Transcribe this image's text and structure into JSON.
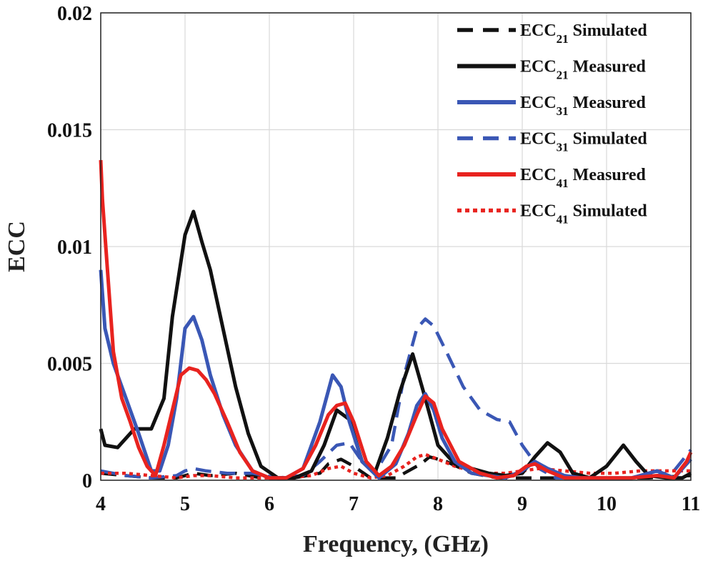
{
  "chart_data": {
    "type": "line",
    "title": "",
    "xlabel": "Frequency, (GHz)",
    "ylabel": "ECC",
    "xlim": [
      4,
      11
    ],
    "ylim": [
      0,
      0.02
    ],
    "xticks": [
      "4",
      "5",
      "6",
      "7",
      "8",
      "9",
      "10",
      "11"
    ],
    "yticks": [
      "0",
      "0.005",
      "0.01",
      "0.015",
      "0.02"
    ],
    "grid": true,
    "legend_position": "top-right",
    "series": [
      {
        "name": "ECC21 Simulated",
        "base": "ECC",
        "sub": "21",
        "suffix": "Simulated",
        "color": "#111111",
        "style": "dashed",
        "x": [
          4,
          4.3,
          4.6,
          4.9,
          5.0,
          5.1,
          5.3,
          5.6,
          5.9,
          6.1,
          6.3,
          6.6,
          6.7,
          6.85,
          7.0,
          7.2,
          7.5,
          7.8,
          7.9,
          8.1,
          8.4,
          8.7,
          9.0,
          9.3,
          9.6,
          10,
          10.5,
          11
        ],
        "y": [
          0.0003,
          0.0002,
          0.0001,
          0.0001,
          0.0002,
          0.0003,
          0.0002,
          0.0003,
          0.0001,
          0.0001,
          0.0001,
          0.0003,
          0.0007,
          0.0009,
          0.0006,
          0.0001,
          0.0001,
          0.0007,
          0.001,
          0.0008,
          0.0003,
          0.0001,
          0.0001,
          0.0001,
          0.0001,
          0.0001,
          0.0001,
          0.0002
        ]
      },
      {
        "name": "ECC21 Measured",
        "base": "ECC",
        "sub": "21",
        "suffix": "Measured",
        "color": "#111111",
        "style": "solid",
        "x": [
          4,
          4.05,
          4.2,
          4.4,
          4.6,
          4.75,
          4.85,
          5.0,
          5.1,
          5.2,
          5.3,
          5.45,
          5.6,
          5.75,
          5.9,
          6.1,
          6.3,
          6.5,
          6.65,
          6.8,
          6.95,
          7.1,
          7.25,
          7.4,
          7.55,
          7.7,
          7.85,
          8.0,
          8.2,
          8.4,
          8.6,
          8.8,
          9.0,
          9.15,
          9.3,
          9.45,
          9.6,
          9.8,
          10.0,
          10.2,
          10.35,
          10.5,
          10.7,
          10.9,
          11
        ],
        "y": [
          0.0022,
          0.0015,
          0.0014,
          0.0022,
          0.0022,
          0.0035,
          0.007,
          0.0105,
          0.0115,
          0.0102,
          0.009,
          0.0065,
          0.004,
          0.002,
          0.0006,
          0.0001,
          0.0001,
          0.0004,
          0.0015,
          0.003,
          0.0026,
          0.0008,
          0.0003,
          0.0018,
          0.0038,
          0.0054,
          0.0035,
          0.0015,
          0.0007,
          0.0005,
          0.0003,
          0.0002,
          0.0003,
          0.001,
          0.0016,
          0.0012,
          0.0003,
          0.0001,
          0.0006,
          0.0015,
          0.0008,
          0.0002,
          0.0001,
          0.0001,
          0.0003
        ]
      },
      {
        "name": "ECC31 Measured",
        "base": "ECC",
        "sub": "31",
        "suffix": "Measured",
        "color": "#3a57b5",
        "style": "solid",
        "x": [
          4,
          4.05,
          4.15,
          4.3,
          4.45,
          4.6,
          4.7,
          4.8,
          4.9,
          5.0,
          5.1,
          5.2,
          5.3,
          5.45,
          5.6,
          5.8,
          6.0,
          6.2,
          6.4,
          6.6,
          6.75,
          6.85,
          6.95,
          7.1,
          7.3,
          7.5,
          7.65,
          7.75,
          7.85,
          7.95,
          8.05,
          8.2,
          8.4,
          8.6,
          8.8,
          9.0,
          9.15,
          9.3,
          9.5,
          9.7,
          10,
          10.3,
          10.6,
          10.8,
          11
        ],
        "y": [
          0.009,
          0.0065,
          0.005,
          0.0035,
          0.002,
          0.0004,
          0.0004,
          0.0015,
          0.0035,
          0.0065,
          0.007,
          0.006,
          0.0045,
          0.0028,
          0.0015,
          0.0004,
          0.0001,
          0.0001,
          0.0005,
          0.0025,
          0.0045,
          0.004,
          0.0025,
          0.0008,
          0.0001,
          0.0007,
          0.002,
          0.0032,
          0.0037,
          0.003,
          0.0018,
          0.0008,
          0.0003,
          0.0002,
          0.0001,
          0.0004,
          0.0008,
          0.0005,
          0.0002,
          0.0001,
          0.0001,
          0.0001,
          0.0004,
          0.0001,
          0.0009
        ]
      },
      {
        "name": "ECC31 Simulated",
        "base": "ECC",
        "sub": "31",
        "suffix": "Simulated",
        "color": "#3a57b5",
        "style": "dashed",
        "x": [
          4,
          4.3,
          4.6,
          4.9,
          5.0,
          5.1,
          5.25,
          5.5,
          5.8,
          6.1,
          6.4,
          6.6,
          6.8,
          6.95,
          7.1,
          7.25,
          7.45,
          7.6,
          7.75,
          7.85,
          7.95,
          8.1,
          8.3,
          8.5,
          8.7,
          8.85,
          9.0,
          9.2,
          9.4,
          9.7,
          10,
          10.3,
          10.6,
          10.8,
          11
        ],
        "y": [
          0.0004,
          0.0002,
          0.0001,
          0.0002,
          0.0004,
          0.0005,
          0.0004,
          0.0003,
          0.0003,
          0.0001,
          0.0002,
          0.0008,
          0.0015,
          0.0016,
          0.0008,
          0.0003,
          0.0015,
          0.0045,
          0.0065,
          0.0069,
          0.0066,
          0.0055,
          0.004,
          0.003,
          0.0026,
          0.0025,
          0.0015,
          0.0005,
          0.0001,
          0.0001,
          0.0001,
          0.0001,
          0.0002,
          0.0004,
          0.0013
        ]
      },
      {
        "name": "ECC41 Measured",
        "base": "ECC",
        "sub": "41",
        "suffix": "Measured",
        "color": "#e8231f",
        "style": "solid",
        "x": [
          4,
          4.02,
          4.08,
          4.15,
          4.25,
          4.35,
          4.45,
          4.55,
          4.65,
          4.75,
          4.85,
          4.95,
          5.05,
          5.15,
          5.25,
          5.35,
          5.5,
          5.65,
          5.8,
          6.0,
          6.2,
          6.4,
          6.55,
          6.7,
          6.8,
          6.9,
          7.0,
          7.15,
          7.3,
          7.45,
          7.6,
          7.75,
          7.85,
          7.95,
          8.05,
          8.25,
          8.5,
          8.7,
          8.9,
          9.05,
          9.15,
          9.3,
          9.5,
          9.7,
          10,
          10.3,
          10.6,
          10.8,
          10.95,
          11
        ],
        "y": [
          0.0137,
          0.012,
          0.009,
          0.0055,
          0.0035,
          0.0025,
          0.0014,
          0.0006,
          0.0002,
          0.0015,
          0.003,
          0.0045,
          0.0048,
          0.0047,
          0.0043,
          0.0037,
          0.0025,
          0.0012,
          0.0004,
          0.0001,
          0.0001,
          0.0005,
          0.0015,
          0.0028,
          0.0032,
          0.0033,
          0.0025,
          0.0008,
          0.0002,
          0.0006,
          0.0015,
          0.0028,
          0.0036,
          0.0033,
          0.0022,
          0.0008,
          0.0003,
          0.0001,
          0.0002,
          0.0006,
          0.0007,
          0.0004,
          0.0001,
          0.0001,
          0.0001,
          0.0001,
          0.0002,
          0.0001,
          0.0008,
          0.0012
        ]
      },
      {
        "name": "ECC41 Simulated",
        "base": "ECC",
        "sub": "41",
        "suffix": "Simulated",
        "color": "#e8231f",
        "style": "dotted",
        "x": [
          4,
          4.3,
          4.6,
          4.9,
          5.1,
          5.3,
          5.6,
          5.9,
          6.2,
          6.5,
          6.7,
          6.85,
          7.0,
          7.2,
          7.4,
          7.6,
          7.75,
          7.85,
          8.0,
          8.2,
          8.4,
          8.6,
          8.8,
          9.0,
          9.2,
          9.5,
          9.8,
          10.1,
          10.4,
          10.7,
          11
        ],
        "y": [
          0.0003,
          0.0003,
          0.0002,
          0.0001,
          0.0002,
          0.0002,
          0.0001,
          0.0001,
          0.0001,
          0.0002,
          0.0005,
          0.0006,
          0.0003,
          0.0001,
          0.0002,
          0.0006,
          0.001,
          0.0011,
          0.0009,
          0.0006,
          0.0004,
          0.0003,
          0.0003,
          0.0004,
          0.0005,
          0.0004,
          0.0003,
          0.0003,
          0.0004,
          0.0004,
          0.0004
        ]
      }
    ]
  }
}
